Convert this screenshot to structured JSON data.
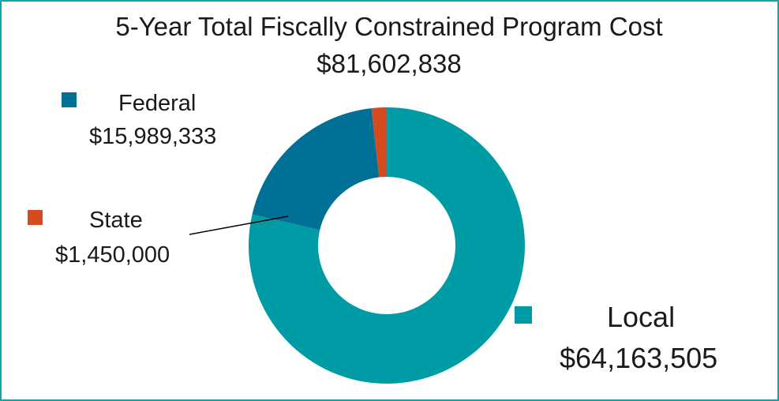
{
  "chart_data": {
    "type": "pie",
    "variant": "donut",
    "title": "5-Year Total Fiscally Constrained Program Cost",
    "subtitle": "$81,602,838",
    "slices": [
      {
        "label": "Local",
        "value": 64163505,
        "value_label": "$64,163,505",
        "color": "#009ca6"
      },
      {
        "label": "Federal",
        "value": 15989333,
        "value_label": "$15,989,333",
        "color": "#007096"
      },
      {
        "label": "State",
        "value": 1450000,
        "value_label": "$1,450,000",
        "color": "#d34b1f"
      }
    ],
    "legend_placement": "around"
  }
}
